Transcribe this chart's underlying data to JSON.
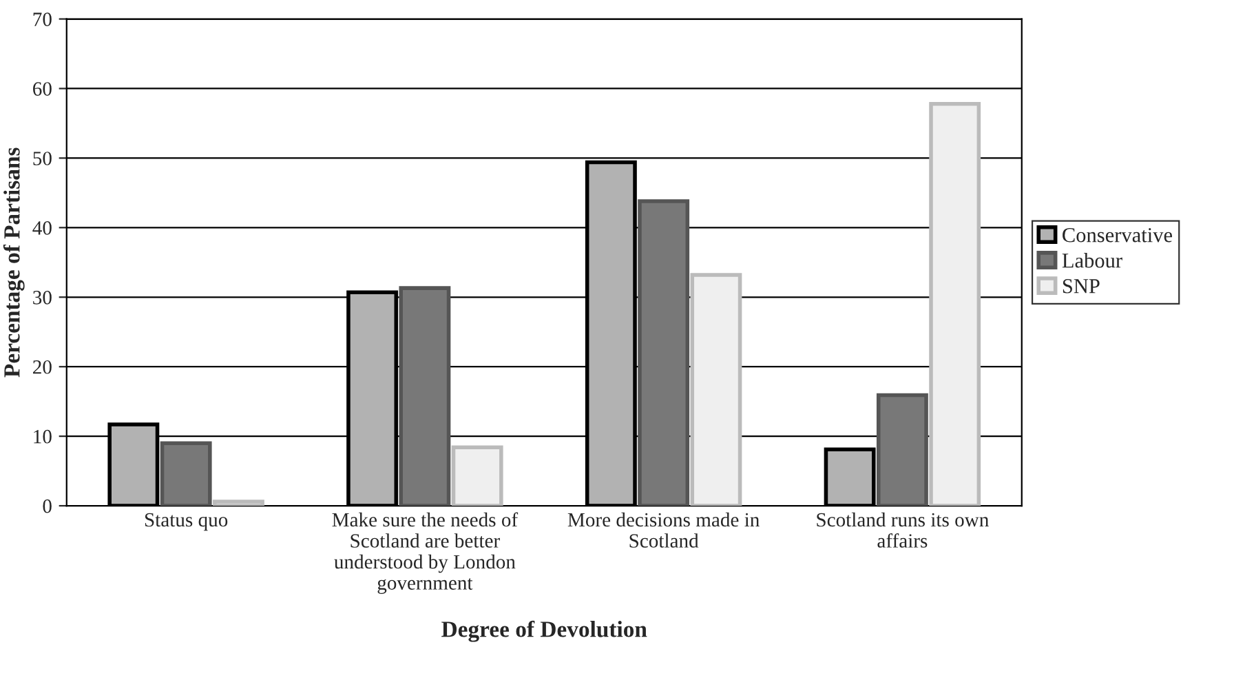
{
  "chart_data": {
    "type": "bar",
    "xlabel": "Degree of Devolution",
    "ylabel": "Percentage of Partisans",
    "categories": [
      "Status quo",
      "Make sure the needs of Scotland are better understood by London government",
      "More decisions made in Scotland",
      "Scotland runs its own affairs"
    ],
    "series": [
      {
        "name": "Conservative",
        "color": "#b2b2b2",
        "values": [
          11.7,
          30.7,
          49.4,
          8.1
        ]
      },
      {
        "name": "Labour",
        "color": "#787878",
        "values": [
          9.0,
          31.3,
          43.8,
          15.9
        ]
      },
      {
        "name": "SNP",
        "color": "#efefef",
        "values": [
          0.6,
          8.4,
          33.2,
          57.8
        ]
      }
    ],
    "ylim": [
      0,
      70
    ],
    "yticks": [
      0,
      10,
      20,
      30,
      40,
      50,
      60,
      70
    ],
    "grid": "y",
    "legend": "right"
  }
}
